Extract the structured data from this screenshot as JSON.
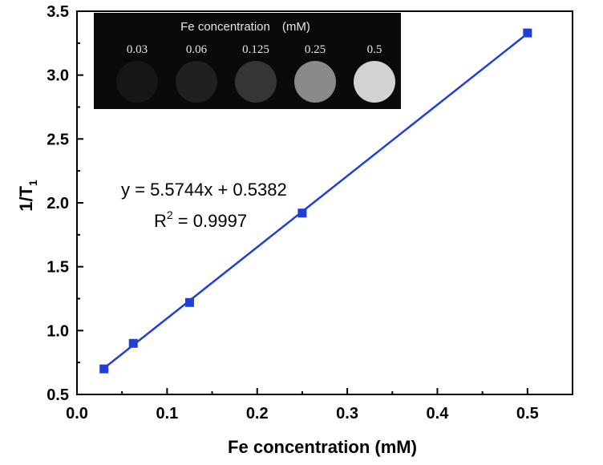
{
  "chart_data": {
    "type": "scatter",
    "xlabel": "Fe concentration (mM)",
    "ylabel": {
      "main": "1/T",
      "sub": "1"
    },
    "xlim": [
      0.0,
      0.55
    ],
    "ylim": [
      0.5,
      3.5
    ],
    "x_ticks": [
      "0.0",
      "0.1",
      "0.2",
      "0.3",
      "0.4",
      "0.5"
    ],
    "y_ticks": [
      "0.5",
      "1.0",
      "1.5",
      "2.0",
      "2.5",
      "3.0",
      "3.5"
    ],
    "grid": false,
    "series": [
      {
        "color": "#1f3fd6",
        "marker": "square",
        "points": [
          {
            "x": 0.03,
            "y": 0.7
          },
          {
            "x": 0.0625,
            "y": 0.9
          },
          {
            "x": 0.125,
            "y": 1.22
          },
          {
            "x": 0.25,
            "y": 1.92
          },
          {
            "x": 0.5,
            "y": 3.33
          }
        ]
      }
    ],
    "fit": {
      "slope": 5.5744,
      "intercept": 0.5382,
      "x_range": [
        0.03,
        0.5
      ],
      "color": "#1f3fd6"
    },
    "annotations": {
      "equation": "y = 5.5744x + 0.5382",
      "r2_prefix": "R",
      "r2_sup": "2",
      "r2_value": " = 0.9997"
    },
    "inset": {
      "title": "Fe concentration　(mM)",
      "labels": [
        "0.03",
        "0.06",
        "0.125",
        "0.25",
        "0.5"
      ],
      "brightness": [
        "#161616",
        "#202020",
        "#353535",
        "#8a8a8a",
        "#d2d2d2"
      ]
    }
  }
}
